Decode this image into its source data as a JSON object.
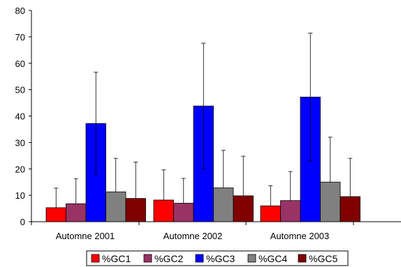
{
  "chart_data": {
    "type": "bar",
    "categories": [
      "Automne 2001",
      "Automne 2002",
      "Automne 2003"
    ],
    "ylim": [
      0,
      80
    ],
    "yticks": [
      "0",
      "10",
      "20",
      "30",
      "40",
      "50",
      "60",
      "70",
      "80"
    ],
    "grid": false,
    "legend_position": "bottom",
    "series": [
      {
        "name": "%GC1",
        "color": "#FF0000",
        "values": [
          5.3,
          8.2,
          6.0
        ],
        "error_upper": [
          12.7,
          19.6,
          13.6
        ]
      },
      {
        "name": "%GC2",
        "color": "#993366",
        "values": [
          6.8,
          7.0,
          8.0
        ],
        "error_upper": [
          16.3,
          16.4,
          19.0
        ]
      },
      {
        "name": "%GC3",
        "color": "#0000FF",
        "values": [
          37.2,
          43.8,
          47.2
        ],
        "error_upper": [
          56.6,
          67.6,
          71.4
        ],
        "error_lower": [
          17.8,
          20.0,
          23.0
        ]
      },
      {
        "name": "%GC4",
        "color": "#808080",
        "values": [
          11.3,
          12.8,
          15.0
        ],
        "error_upper": [
          24.0,
          27.0,
          32.0
        ]
      },
      {
        "name": "%GC5",
        "color": "#800000",
        "values": [
          8.8,
          9.8,
          9.5
        ],
        "error_upper": [
          22.6,
          24.8,
          24.0
        ]
      }
    ]
  }
}
